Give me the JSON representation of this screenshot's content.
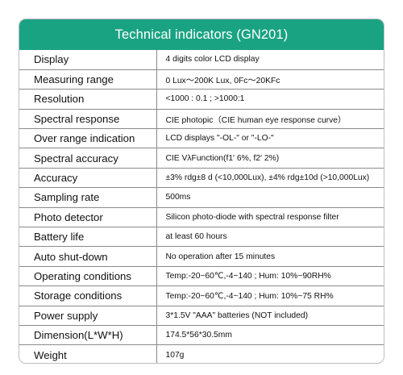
{
  "title": "Technical indicators (GN201)",
  "colors": {
    "header_bg": "#1aa383",
    "header_text": "#ffffff",
    "border": "#8a8a8a"
  },
  "rows": [
    {
      "label": "Display",
      "value": "4 digits color LCD display"
    },
    {
      "label": "Measuring range",
      "value": "0 Lux～200K Lux, 0Fc～20KFc"
    },
    {
      "label": "Resolution",
      "value": "<1000 : 0.1 ;   >1000:1"
    },
    {
      "label": "Spectral response",
      "value": "CIE photopic（CIE human eye response curve）"
    },
    {
      "label": "Over range indication",
      "value": "LCD displays \"-OL-\" or \"-LO-\""
    },
    {
      "label": "Spectral accuracy",
      "value": "CIE VλFunction(f1′ 6%, f2′ 2%)"
    },
    {
      "label": "Accuracy",
      "value": "±3% rdg±8 d (<10,000Lux),   ±4% rdg±10d (>10,000Lux)"
    },
    {
      "label": "Sampling rate",
      "value": "500ms"
    },
    {
      "label": "Photo detector",
      "value": "Silicon photo-diode with spectral response filter"
    },
    {
      "label": "Battery life",
      "value": "at least 60 hours"
    },
    {
      "label": "Auto shut-down",
      "value": "No operation after 15 minutes"
    },
    {
      "label": "Operating conditions",
      "value": "Temp:-20~60℃,-4~140 ; Hum: 10%~90RH%"
    },
    {
      "label": "Storage conditions",
      "value": "Temp:-20~60℃,-4~140 ; Hum: 10%~75 RH%"
    },
    {
      "label": "Power supply",
      "value": "3*1.5V \"AAA\" batteries (NOT included)"
    },
    {
      "label": "Dimension(L*W*H)",
      "value": "174.5*56*30.5mm"
    },
    {
      "label": "Weight",
      "value": "107g"
    }
  ]
}
